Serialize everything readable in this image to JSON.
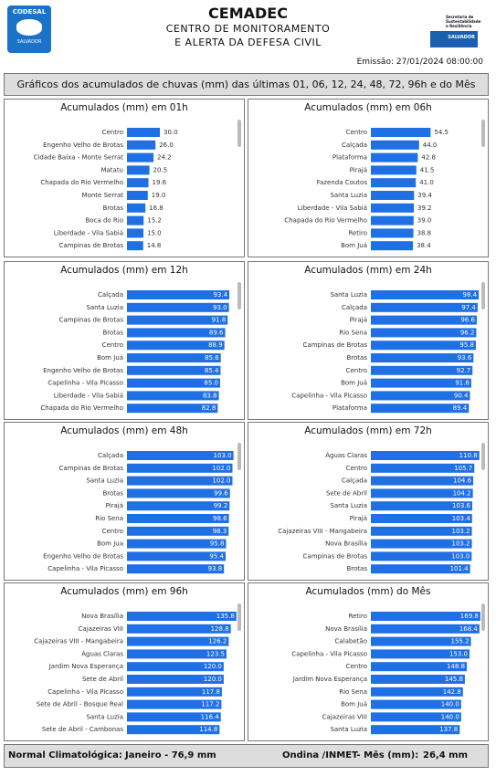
{
  "header": {
    "logo_left": "CODESAL",
    "logo_left_sub": "SALVADOR",
    "title": "CEMADEC",
    "subtitle_1": "CENTRO DE MONITORAMENTO",
    "subtitle_2": "E ALERTA DA DEFESA CIVIL",
    "logo_right_text": "Secretaria de Sustentabilidade e Resiliência",
    "logo_right_sub": "SALVADOR",
    "emission": "Emissão: 27/01/2024 08:00:00"
  },
  "banner": "Gráficos dos acumulados de chuvas (mm) das últimas 01, 06, 12, 24, 48, 72, 96h e do Mês",
  "chart_data": [
    {
      "type": "bar",
      "orientation": "horizontal",
      "title": "Acumulados (mm) em 01h",
      "color": "#1f6fe5",
      "xlim": [
        0,
        100
      ],
      "categories": [
        "Centro",
        "Engenho Velho de Brotas",
        "Cidade Baixa - Monte Serrat",
        "Matatu",
        "Chapada do Rio Vermelho",
        "Monte Serrat",
        "Brotas",
        "Boca do Rio",
        "Liberdade - Vila Sabiá",
        "Campinas de Brotas"
      ],
      "values": [
        30,
        26,
        24.2,
        20.5,
        19.6,
        19,
        16.8,
        15.2,
        15,
        14.8
      ],
      "value_labels": [
        "30.0",
        "26.0",
        "24.2",
        "20.5",
        "19.6",
        "19.0",
        "16.8",
        "15.2",
        "15.0",
        "14.8"
      ]
    },
    {
      "type": "bar",
      "orientation": "horizontal",
      "title": "Acumulados (mm) em 06h",
      "color": "#1f6fe5",
      "xlim": [
        0,
        100
      ],
      "categories": [
        "Centro",
        "Calçada",
        "Plataforma",
        "Pirajá",
        "Fazenda Coutos",
        "Santa Luzia",
        "Liberdade - Vila Sabiá",
        "Chapada do Rio Vermelho",
        "Retiro",
        "Bom Juá"
      ],
      "values": [
        54.5,
        44,
        42.8,
        41.5,
        41,
        39.4,
        39.2,
        39,
        38.8,
        38.4
      ],
      "value_labels": [
        "54.5",
        "44.0",
        "42.8",
        "41.5",
        "41.0",
        "39.4",
        "39.2",
        "39.0",
        "38.8",
        "38.4"
      ]
    },
    {
      "type": "bar",
      "orientation": "horizontal",
      "title": "Acumulados (mm) em 12h",
      "color": "#1f6fe5",
      "xlim": [
        0,
        100
      ],
      "categories": [
        "Calçada",
        "Santa Luzia",
        "Campinas de Brotas",
        "Brotas",
        "Centro",
        "Bom Juá",
        "Engenho Velho de Brotas",
        "Capelinha - Vila Picasso",
        "Liberdade - Vila Sabiá",
        "Chapada do Rio Vermelho"
      ],
      "values": [
        93.4,
        93,
        91.8,
        89.6,
        88.9,
        85.6,
        85.4,
        85,
        83.8,
        82.8
      ],
      "value_labels": [
        "93.4",
        "93.0",
        "91.8",
        "89.6",
        "88.9",
        "85.6",
        "85.4",
        "85.0",
        "83.8",
        "82.8"
      ]
    },
    {
      "type": "bar",
      "orientation": "horizontal",
      "title": "Acumulados (mm) em 24h",
      "color": "#1f6fe5",
      "xlim": [
        0,
        100
      ],
      "categories": [
        "Santa Luzia",
        "Calçada",
        "Pirajá",
        "Rio Sena",
        "Campinas de Brotas",
        "Brotas",
        "Centro",
        "Bom Juá",
        "Capelinha - Vila Picasso",
        "Plataforma"
      ],
      "values": [
        98.4,
        97.4,
        96.6,
        96.2,
        95.8,
        93.6,
        92.7,
        91.6,
        90.4,
        89.4
      ],
      "value_labels": [
        "98.4",
        "97.4",
        "96.6",
        "96.2",
        "95.8",
        "93.6",
        "92.7",
        "91.6",
        "90.4",
        "89.4"
      ]
    },
    {
      "type": "bar",
      "orientation": "horizontal",
      "title": "Acumulados (mm) em 48h",
      "color": "#1f6fe5",
      "xlim": [
        0,
        106
      ],
      "categories": [
        "Calçada",
        "Campinas de Brotas",
        "Santa Luzia",
        "Brotas",
        "Pirajá",
        "Rio Sena",
        "Centro",
        "Bom Jua",
        "Engenho Velho de Brotas",
        "Capelinha - Vila Picasso"
      ],
      "values": [
        103,
        102,
        102,
        99.6,
        99.2,
        98.6,
        98.3,
        95.8,
        95.4,
        93.8
      ],
      "value_labels": [
        "103.0",
        "102.0",
        "102.0",
        "99.6",
        "99.2",
        "98.6",
        "98.3",
        "95.8",
        "95.4",
        "93.8"
      ]
    },
    {
      "type": "bar",
      "orientation": "horizontal",
      "title": "Acumulados (mm) em 72h",
      "color": "#1f6fe5",
      "xlim": [
        0,
        112
      ],
      "categories": [
        "Águas Claras",
        "Centro",
        "Calçada",
        "Sete de Abril",
        "Santa Luzia",
        "Pirajá",
        "Cajazeiras VIII - Mangabeira",
        "Nova Brasília",
        "Campinas de Brotas",
        "Brotas"
      ],
      "values": [
        110.8,
        105.7,
        104.6,
        104.2,
        103.6,
        103.4,
        103.2,
        103.2,
        103,
        101.4
      ],
      "value_labels": [
        "110.8",
        "105.7",
        "104.6",
        "104.2",
        "103.6",
        "103.4",
        "103.2",
        "103.2",
        "103.0",
        "101.4"
      ]
    },
    {
      "type": "bar",
      "orientation": "horizontal",
      "title": "Acumulados (mm) em 96h",
      "color": "#1f6fe5",
      "xlim": [
        0,
        136
      ],
      "categories": [
        "Nova Brasília",
        "Cajazeiras VIII",
        "Cajazeiras VIII - Mangabeira",
        "Águas Claras",
        "Jardim Nova Esperança",
        "Sete de Abril",
        "Capelinha - Vila Picasso",
        "Sete de Abril - Bosque Real",
        "Santa Luzia",
        "Sete de Abril - Cambonas"
      ],
      "values": [
        135.8,
        128.8,
        126.2,
        123.5,
        120,
        120,
        117.8,
        117.2,
        116.4,
        114.8
      ],
      "value_labels": [
        "135.8",
        "128.8",
        "126.2",
        "123.5",
        "120.0",
        "120.0",
        "117.8",
        "117.2",
        "116.4",
        "114.8"
      ]
    },
    {
      "type": "bar",
      "orientation": "horizontal",
      "title": "Acumulados (mm) do Mês",
      "color": "#1f6fe5",
      "xlim": [
        0,
        170
      ],
      "categories": [
        "Retiro",
        "Nova Brasília",
        "Calabetão",
        "Capelinha - Vila Picasso",
        "Centro",
        "Jardim Nova Esperança",
        "Rio Sena",
        "Bom Juá",
        "Cajazeiras VIII",
        "Santa Luzia"
      ],
      "values": [
        169.8,
        168.4,
        155.2,
        153,
        148.8,
        145.8,
        142.8,
        140,
        140,
        137.8
      ],
      "value_labels": [
        "169.8",
        "168.4",
        "155.2",
        "153.0",
        "148.8",
        "145.8",
        "142.8",
        "140.0",
        "140.0",
        "137.8"
      ]
    }
  ],
  "footer": {
    "normal_label": "Normal Climatológica:",
    "normal_value": "Janeiro - 76,9 mm",
    "station_label": "Ondina /INMET- Mês (mm):",
    "station_value": "26,4 mm"
  }
}
